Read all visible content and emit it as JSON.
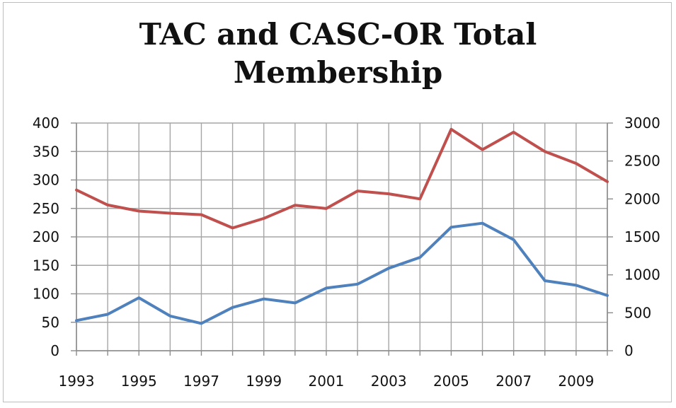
{
  "chart_data": {
    "type": "line",
    "title": [
      "TAC and CASC-OR Total",
      "Membership"
    ],
    "x": [
      1993,
      1994,
      1995,
      1996,
      1997,
      1998,
      1999,
      2000,
      2001,
      2002,
      2003,
      2004,
      2005,
      2006,
      2007,
      2008,
      2009,
      2010
    ],
    "x_tick_labels": [
      "1993",
      "1995",
      "1997",
      "1999",
      "2001",
      "2003",
      "2005",
      "2007",
      "2009"
    ],
    "xlim": [
      1993,
      2010
    ],
    "y_left": {
      "lim": [
        0,
        400
      ],
      "ticks": [
        "0",
        "50",
        "100",
        "150",
        "200",
        "250",
        "300",
        "350",
        "400"
      ]
    },
    "y_right": {
      "lim": [
        0,
        3000
      ],
      "ticks": [
        "0",
        "500",
        "1000",
        "1500",
        "2000",
        "2500",
        "3000"
      ]
    },
    "grid": true,
    "series": [
      {
        "axis": "left",
        "color": "#4f81bd",
        "values": [
          53,
          64,
          93,
          61,
          48,
          76,
          91,
          84,
          110,
          117,
          145,
          164,
          217,
          224,
          195,
          123,
          115,
          97
        ]
      },
      {
        "axis": "right",
        "color": "#c0504d",
        "values": [
          2118,
          1920,
          1840,
          1812,
          1793,
          1617,
          1743,
          1917,
          1874,
          2105,
          2067,
          2000,
          2918,
          2650,
          2880,
          2625,
          2468,
          2228
        ]
      }
    ]
  }
}
